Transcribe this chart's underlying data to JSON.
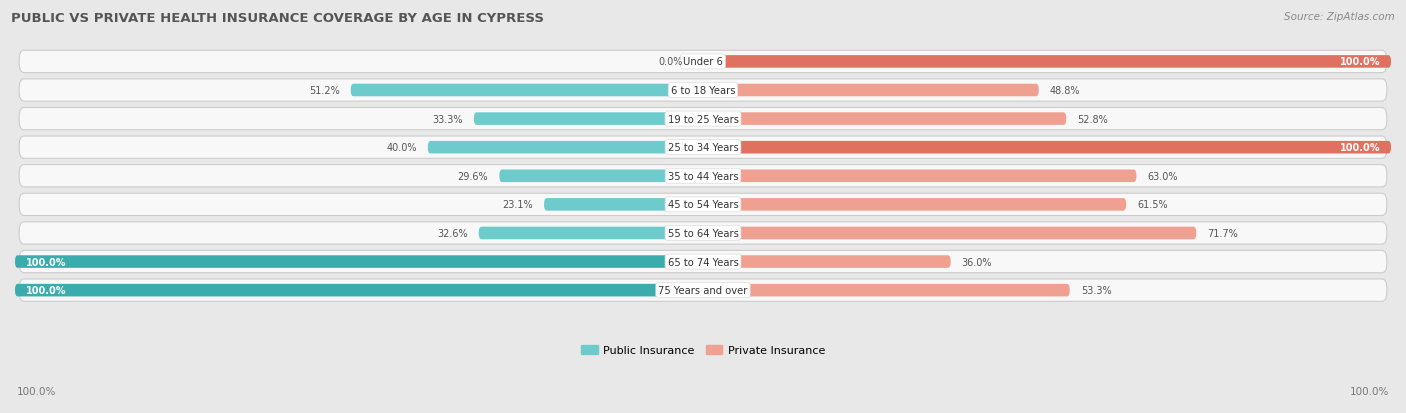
{
  "title": "PUBLIC VS PRIVATE HEALTH INSURANCE COVERAGE BY AGE IN CYPRESS",
  "source": "Source: ZipAtlas.com",
  "categories": [
    "Under 6",
    "6 to 18 Years",
    "19 to 25 Years",
    "25 to 34 Years",
    "35 to 44 Years",
    "45 to 54 Years",
    "55 to 64 Years",
    "65 to 74 Years",
    "75 Years and over"
  ],
  "public_values": [
    0.0,
    51.2,
    33.3,
    40.0,
    29.6,
    23.1,
    32.6,
    100.0,
    100.0
  ],
  "private_values": [
    100.0,
    48.8,
    52.8,
    100.0,
    63.0,
    61.5,
    71.7,
    36.0,
    53.3
  ],
  "public_color_full": "#3aacad",
  "public_color_light": "#6ecbcc",
  "private_color_full": "#e07060",
  "private_color_light": "#f0a090",
  "row_bg": "#f0f0f0",
  "row_inner_bg": "#fafafa",
  "bg_color": "#e8e8e8",
  "title_color": "#555555",
  "figsize": [
    14.06,
    4.14
  ],
  "dpi": 100
}
